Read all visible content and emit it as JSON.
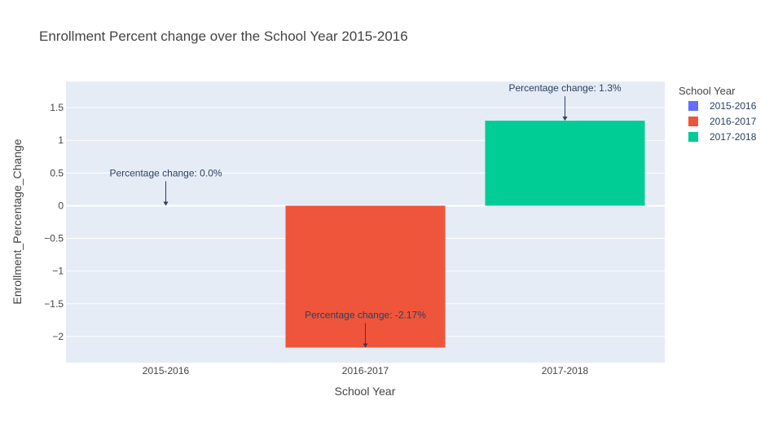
{
  "chart_data": {
    "type": "bar",
    "title": "Enrollment Percent change over the School Year 2015-2016",
    "xlabel": "School Year",
    "ylabel": "Enrollment_Percentage_Change",
    "categories": [
      "2015-2016",
      "2016-2017",
      "2017-2018"
    ],
    "ylim": [
      -2.4,
      1.9
    ],
    "yticks": [
      -2,
      -1.5,
      -1,
      -0.5,
      0,
      0.5,
      1,
      1.5
    ],
    "ytick_labels": [
      "−2",
      "−1.5",
      "−1",
      "−0.5",
      "0",
      "0.5",
      "1",
      "1.5"
    ],
    "grid": true,
    "legend": {
      "title": "School Year",
      "position": "right"
    },
    "series": [
      {
        "name": "2015-2016",
        "x": "2015-2016",
        "value": 0.0,
        "color": "#636efa"
      },
      {
        "name": "2016-2017",
        "x": "2016-2017",
        "value": -2.17,
        "color": "#ef553b"
      },
      {
        "name": "2017-2018",
        "x": "2017-2018",
        "value": 1.3,
        "color": "#00cc96"
      }
    ],
    "annotations": [
      {
        "x": "2015-2016",
        "y": 0.0,
        "text": "Percentage change: 0.0%"
      },
      {
        "x": "2016-2017",
        "y": -2.17,
        "text": "Percentage change: -2.17%"
      },
      {
        "x": "2017-2018",
        "y": 1.3,
        "text": "Percentage change: 1.3%"
      }
    ],
    "colors": {
      "plot_background": "#e5ecf6",
      "grid": "#ffffff",
      "text": "#2a3f5f",
      "axis_text": "#444444",
      "title_text": "#444444"
    }
  }
}
